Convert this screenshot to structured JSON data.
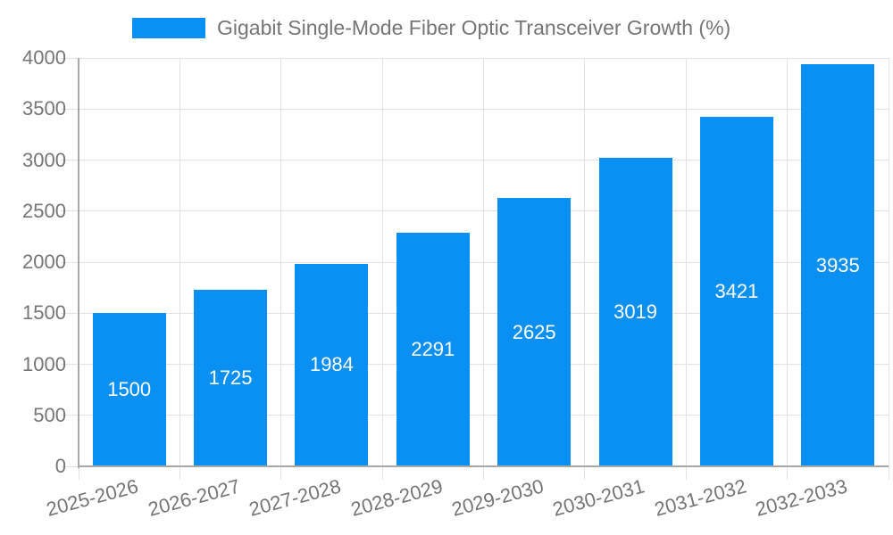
{
  "chart_data": {
    "type": "bar",
    "title": "Gigabit Single-Mode Fiber Optic Transceiver Growth (%)",
    "categories": [
      "2025-2026",
      "2026-2027",
      "2027-2028",
      "2028-2029",
      "2029-2030",
      "2030-2031",
      "2031-2032",
      "2032-2033"
    ],
    "values": [
      1500,
      1725,
      1984,
      2291,
      2625,
      3019,
      3421,
      3935
    ],
    "yticks": [
      0,
      500,
      1000,
      1500,
      2000,
      2500,
      3000,
      3500,
      4000
    ],
    "ylim": [
      0,
      4000
    ],
    "xlabel": "",
    "ylabel": "",
    "legend_position": "top",
    "grid": true,
    "x_label_rotation_deg": -15,
    "colors": {
      "bar": "#0A8FF2",
      "value_label": "#FFFFFF",
      "tick_label": "#757575",
      "legend_text": "#757575",
      "gridline": "#E2E2E2",
      "tick_mark": "#CCCCCC",
      "axis_line": "#A8A8A8",
      "background": "#FFFFFF"
    }
  }
}
